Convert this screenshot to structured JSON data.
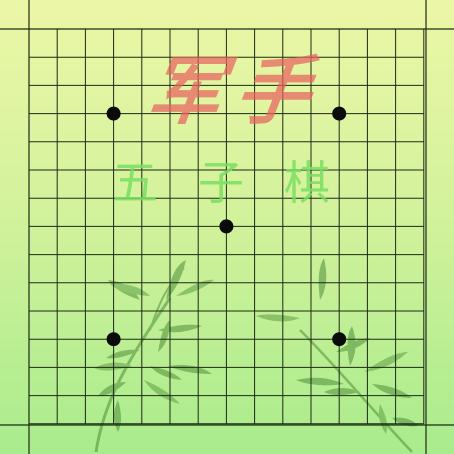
{
  "game": {
    "title_main": "军手",
    "title_sub": "五子棋",
    "line_color": "#1c2a14",
    "stone_color": "#0b0b0b",
    "bamboo_color": "#4f8f3a",
    "star_points": [
      {
        "col": 3,
        "row": 3
      },
      {
        "col": 11,
        "row": 3
      },
      {
        "col": 7,
        "row": 7
      },
      {
        "col": 3,
        "row": 11
      },
      {
        "col": 11,
        "row": 11
      }
    ]
  }
}
